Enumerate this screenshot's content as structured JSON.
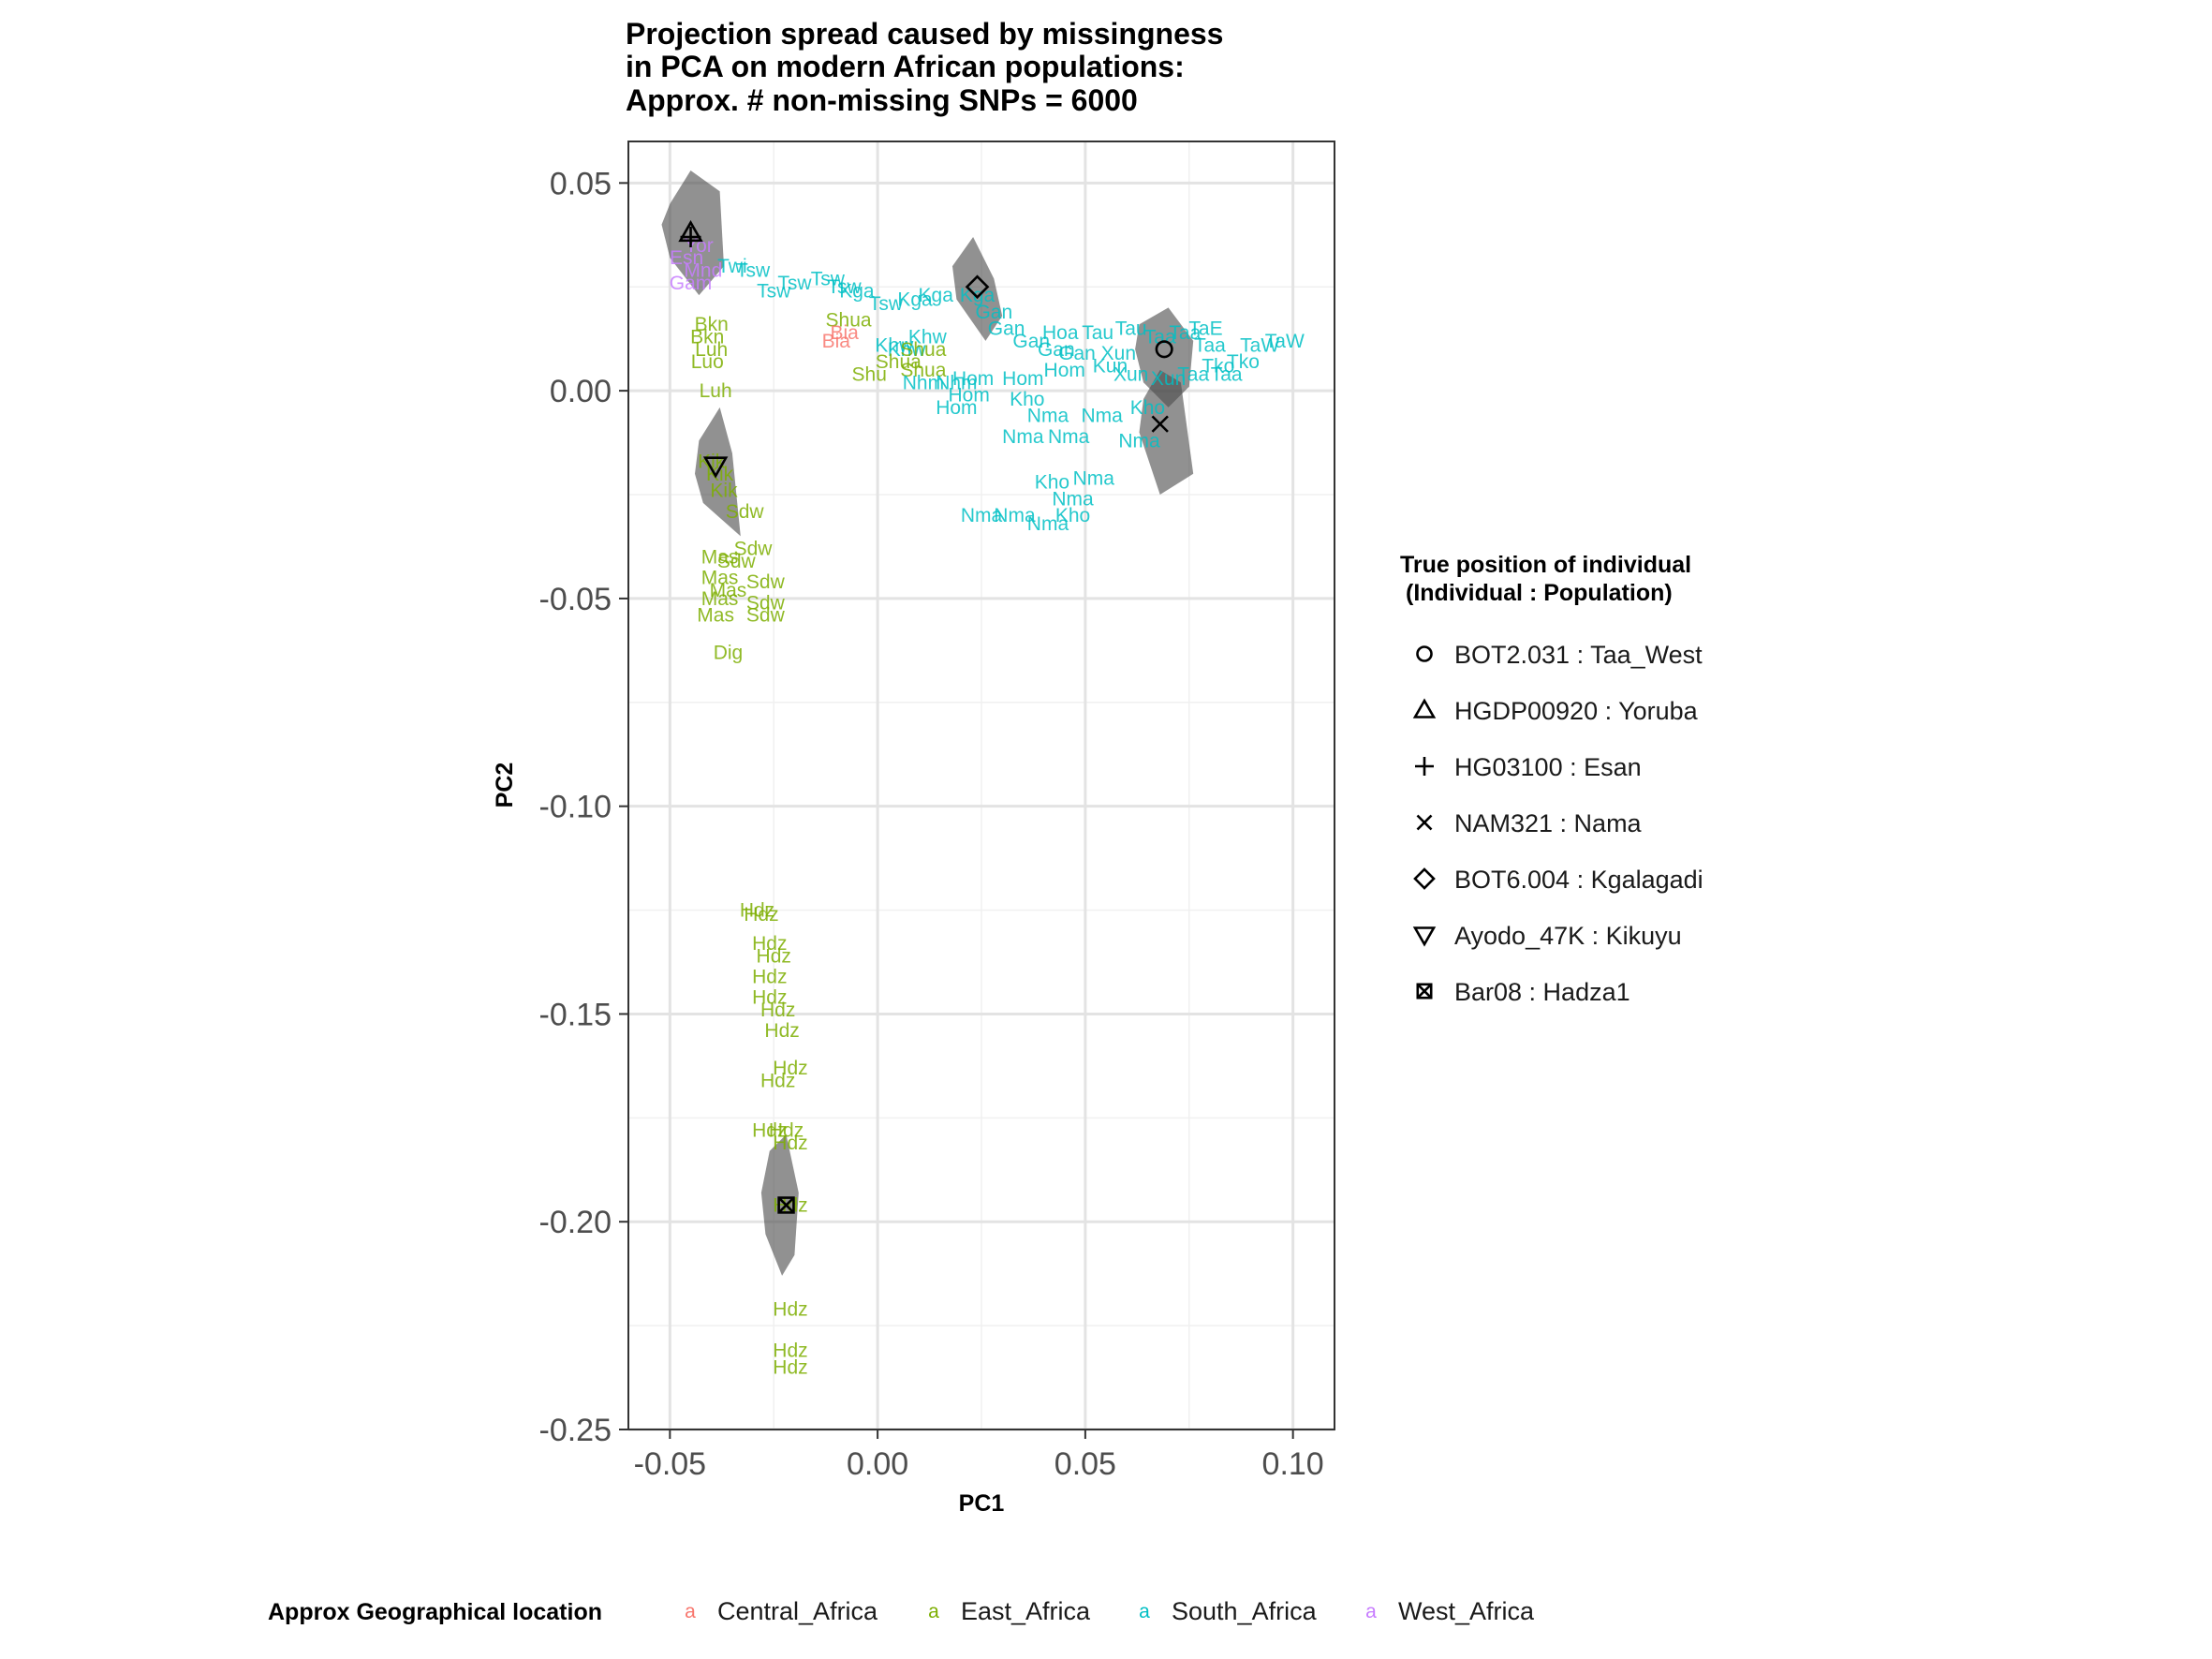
{
  "chart_data": {
    "type": "scatter",
    "title_lines": [
      "Projection spread caused by missingness",
      "in PCA on modern African populations:",
      "Approx. # non-missing SNPs = 6000"
    ],
    "xlabel": "PC1",
    "ylabel": "PC2",
    "xlim": [
      -0.06,
      0.11
    ],
    "ylim": [
      -0.25,
      0.06
    ],
    "x_ticks": [
      -0.05,
      0.0,
      0.05,
      0.1
    ],
    "x_tick_labels": [
      "-0.05",
      "0.00",
      "0.05",
      "0.10"
    ],
    "y_ticks": [
      0.05,
      0.0,
      -0.05,
      -0.1,
      -0.15,
      -0.2,
      -0.25
    ],
    "y_tick_labels": [
      "0.05",
      "0.00",
      "-0.05",
      "-0.10",
      "-0.15",
      "-0.20",
      "-0.25"
    ],
    "grid": true,
    "region_legend": {
      "title": "Approx Geographical location",
      "position": "bottom",
      "entries": [
        {
          "name": "Central_Africa",
          "color": "#F8766D"
        },
        {
          "name": "East_Africa",
          "color": "#7CAE00"
        },
        {
          "name": "South_Africa",
          "color": "#00BFC4"
        },
        {
          "name": "West_Africa",
          "color": "#C77CFF"
        }
      ]
    },
    "true_position_legend": {
      "title_lines": [
        "True position of individual",
        "(Individual : Population)"
      ],
      "position": "right",
      "entries": [
        {
          "shape": "circle",
          "label": "BOT2.031 : Taa_West"
        },
        {
          "shape": "triangle",
          "label": "HGDP00920 : Yoruba"
        },
        {
          "shape": "plus",
          "label": "HG03100 : Esan"
        },
        {
          "shape": "cross",
          "label": "NAM321 : Nama"
        },
        {
          "shape": "diamond",
          "label": "BOT6.004 : Kgalagadi"
        },
        {
          "shape": "triangle-down",
          "label": "Ayodo_47K : Kikuyu"
        },
        {
          "shape": "square-cross",
          "label": "Bar08 : Hadza1"
        }
      ]
    },
    "true_positions": [
      {
        "label": "BOT2.031 : Taa_West",
        "x": 0.069,
        "y": 0.01
      },
      {
        "label": "HGDP00920 : Yoruba",
        "x": -0.045,
        "y": 0.038
      },
      {
        "label": "HG03100 : Esan",
        "x": -0.045,
        "y": 0.037
      },
      {
        "label": "NAM321 : Nama",
        "x": 0.068,
        "y": -0.008
      },
      {
        "label": "BOT6.004 : Kgalagadi",
        "x": 0.024,
        "y": 0.025
      },
      {
        "label": "Ayodo_47K : Kikuyu",
        "x": -0.039,
        "y": -0.018
      },
      {
        "label": "Bar08 : Hadza1",
        "x": -0.022,
        "y": -0.196
      }
    ],
    "spread_hulls": [
      {
        "points": [
          [
            -0.05,
            0.045
          ],
          [
            -0.045,
            0.053
          ],
          [
            -0.038,
            0.048
          ],
          [
            -0.037,
            0.03
          ],
          [
            -0.043,
            0.023
          ],
          [
            -0.05,
            0.032
          ],
          [
            -0.052,
            0.04
          ]
        ]
      },
      {
        "points": [
          [
            0.018,
            0.03
          ],
          [
            0.023,
            0.037
          ],
          [
            0.028,
            0.027
          ],
          [
            0.03,
            0.018
          ],
          [
            0.026,
            0.012
          ],
          [
            0.019,
            0.022
          ]
        ]
      },
      {
        "points": [
          [
            0.063,
            0.016
          ],
          [
            0.07,
            0.02
          ],
          [
            0.076,
            0.012
          ],
          [
            0.075,
            0.001
          ],
          [
            0.07,
            -0.004
          ],
          [
            0.064,
            0.002
          ],
          [
            0.062,
            0.01
          ]
        ]
      },
      {
        "points": [
          [
            0.064,
            -0.002
          ],
          [
            0.068,
            0.005
          ],
          [
            0.073,
            0.002
          ],
          [
            0.076,
            -0.02
          ],
          [
            0.068,
            -0.025
          ],
          [
            0.063,
            -0.01
          ]
        ]
      },
      {
        "points": [
          [
            -0.043,
            -0.012
          ],
          [
            -0.038,
            -0.004
          ],
          [
            -0.035,
            -0.015
          ],
          [
            -0.033,
            -0.035
          ],
          [
            -0.042,
            -0.027
          ],
          [
            -0.044,
            -0.02
          ]
        ]
      },
      {
        "points": [
          [
            -0.026,
            -0.183
          ],
          [
            -0.022,
            -0.179
          ],
          [
            -0.019,
            -0.193
          ],
          [
            -0.02,
            -0.208
          ],
          [
            -0.023,
            -0.213
          ],
          [
            -0.027,
            -0.203
          ],
          [
            -0.028,
            -0.193
          ]
        ]
      }
    ],
    "projected_labels": [
      {
        "text": "Tsw",
        "x": -0.02,
        "y": 0.026,
        "region": "South_Africa"
      },
      {
        "text": "Tsw",
        "x": -0.03,
        "y": 0.029,
        "region": "South_Africa"
      },
      {
        "text": "Tsw",
        "x": -0.012,
        "y": 0.027,
        "region": "South_Africa"
      },
      {
        "text": "Twi",
        "x": -0.035,
        "y": 0.03,
        "region": "South_Africa"
      },
      {
        "text": "Tsw",
        "x": -0.025,
        "y": 0.024,
        "region": "South_Africa"
      },
      {
        "text": "Tsw",
        "x": -0.008,
        "y": 0.025,
        "region": "South_Africa"
      },
      {
        "text": "Kga",
        "x": -0.005,
        "y": 0.024,
        "region": "South_Africa"
      },
      {
        "text": "Tsw",
        "x": 0.002,
        "y": 0.021,
        "region": "South_Africa"
      },
      {
        "text": "Kga",
        "x": 0.009,
        "y": 0.022,
        "region": "South_Africa"
      },
      {
        "text": "Kga",
        "x": 0.014,
        "y": 0.023,
        "region": "South_Africa"
      },
      {
        "text": "Shua",
        "x": -0.007,
        "y": 0.017,
        "region": "East_Africa"
      },
      {
        "text": "Bia",
        "x": -0.008,
        "y": 0.014,
        "region": "Central_Africa"
      },
      {
        "text": "Bia",
        "x": -0.01,
        "y": 0.012,
        "region": "Central_Africa"
      },
      {
        "text": "Kga",
        "x": 0.024,
        "y": 0.023,
        "region": "South_Africa"
      },
      {
        "text": "Gan",
        "x": 0.028,
        "y": 0.019,
        "region": "South_Africa"
      },
      {
        "text": "Gan",
        "x": 0.031,
        "y": 0.015,
        "region": "South_Africa"
      },
      {
        "text": "Gan",
        "x": 0.037,
        "y": 0.012,
        "region": "South_Africa"
      },
      {
        "text": "Hoa",
        "x": 0.044,
        "y": 0.014,
        "region": "South_Africa"
      },
      {
        "text": "Gan",
        "x": 0.043,
        "y": 0.01,
        "region": "South_Africa"
      },
      {
        "text": "Gan",
        "x": 0.048,
        "y": 0.009,
        "region": "South_Africa"
      },
      {
        "text": "Khw",
        "x": 0.012,
        "y": 0.013,
        "region": "South_Africa"
      },
      {
        "text": "Khw",
        "x": 0.004,
        "y": 0.011,
        "region": "South_Africa"
      },
      {
        "text": "Khw",
        "x": 0.007,
        "y": 0.01,
        "region": "South_Africa"
      },
      {
        "text": "Shua",
        "x": 0.011,
        "y": 0.01,
        "region": "East_Africa"
      },
      {
        "text": "Shua",
        "x": 0.005,
        "y": 0.007,
        "region": "East_Africa"
      },
      {
        "text": "Shu",
        "x": -0.002,
        "y": 0.004,
        "region": "East_Africa"
      },
      {
        "text": "Shua",
        "x": 0.011,
        "y": 0.005,
        "region": "East_Africa"
      },
      {
        "text": "Nhm",
        "x": 0.011,
        "y": 0.002,
        "region": "South_Africa"
      },
      {
        "text": "Nhm",
        "x": 0.019,
        "y": 0.002,
        "region": "South_Africa"
      },
      {
        "text": "Hom",
        "x": 0.023,
        "y": 0.003,
        "region": "South_Africa"
      },
      {
        "text": "Hom",
        "x": 0.035,
        "y": 0.003,
        "region": "South_Africa"
      },
      {
        "text": "Hom",
        "x": 0.022,
        "y": -0.001,
        "region": "South_Africa"
      },
      {
        "text": "Hom",
        "x": 0.019,
        "y": -0.004,
        "region": "South_Africa"
      },
      {
        "text": "Hom",
        "x": 0.045,
        "y": 0.005,
        "region": "South_Africa"
      },
      {
        "text": "Kho",
        "x": 0.036,
        "y": -0.002,
        "region": "South_Africa"
      },
      {
        "text": "Nma",
        "x": 0.041,
        "y": -0.006,
        "region": "South_Africa"
      },
      {
        "text": "Nma",
        "x": 0.054,
        "y": -0.006,
        "region": "South_Africa"
      },
      {
        "text": "Nma",
        "x": 0.035,
        "y": -0.011,
        "region": "South_Africa"
      },
      {
        "text": "Nma",
        "x": 0.046,
        "y": -0.011,
        "region": "South_Africa"
      },
      {
        "text": "Kho",
        "x": 0.065,
        "y": -0.004,
        "region": "South_Africa"
      },
      {
        "text": "Nma",
        "x": 0.063,
        "y": -0.012,
        "region": "South_Africa"
      },
      {
        "text": "Kho",
        "x": 0.042,
        "y": -0.022,
        "region": "South_Africa"
      },
      {
        "text": "Nma",
        "x": 0.052,
        "y": -0.021,
        "region": "South_Africa"
      },
      {
        "text": "Nma",
        "x": 0.047,
        "y": -0.026,
        "region": "South_Africa"
      },
      {
        "text": "Nma",
        "x": 0.025,
        "y": -0.03,
        "region": "South_Africa"
      },
      {
        "text": "Nma",
        "x": 0.033,
        "y": -0.03,
        "region": "South_Africa"
      },
      {
        "text": "Kho",
        "x": 0.047,
        "y": -0.03,
        "region": "South_Africa"
      },
      {
        "text": "Nma",
        "x": 0.041,
        "y": -0.032,
        "region": "South_Africa"
      },
      {
        "text": "Tau",
        "x": 0.053,
        "y": 0.014,
        "region": "South_Africa"
      },
      {
        "text": "Tau",
        "x": 0.061,
        "y": 0.015,
        "region": "South_Africa"
      },
      {
        "text": "Taa",
        "x": 0.068,
        "y": 0.013,
        "region": "South_Africa"
      },
      {
        "text": "Taa",
        "x": 0.074,
        "y": 0.014,
        "region": "South_Africa"
      },
      {
        "text": "Xun",
        "x": 0.058,
        "y": 0.009,
        "region": "South_Africa"
      },
      {
        "text": "Kun",
        "x": 0.056,
        "y": 0.006,
        "region": "South_Africa"
      },
      {
        "text": "Xun",
        "x": 0.061,
        "y": 0.004,
        "region": "South_Africa"
      },
      {
        "text": "Xun",
        "x": 0.07,
        "y": 0.003,
        "region": "South_Africa"
      },
      {
        "text": "Taa",
        "x": 0.08,
        "y": 0.011,
        "region": "South_Africa"
      },
      {
        "text": "Tko",
        "x": 0.082,
        "y": 0.006,
        "region": "South_Africa"
      },
      {
        "text": "Tko",
        "x": 0.088,
        "y": 0.007,
        "region": "South_Africa"
      },
      {
        "text": "TaW",
        "x": 0.092,
        "y": 0.011,
        "region": "South_Africa"
      },
      {
        "text": "TaW",
        "x": 0.098,
        "y": 0.012,
        "region": "South_Africa"
      },
      {
        "text": "Taa",
        "x": 0.076,
        "y": 0.004,
        "region": "South_Africa"
      },
      {
        "text": "Taa",
        "x": 0.084,
        "y": 0.004,
        "region": "South_Africa"
      },
      {
        "text": "TaE",
        "x": 0.079,
        "y": 0.015,
        "region": "South_Africa"
      },
      {
        "text": "Yor",
        "x": -0.043,
        "y": 0.035,
        "region": "West_Africa"
      },
      {
        "text": "Esn",
        "x": -0.046,
        "y": 0.032,
        "region": "West_Africa"
      },
      {
        "text": "Gam",
        "x": -0.045,
        "y": 0.026,
        "region": "West_Africa"
      },
      {
        "text": "Mnd",
        "x": -0.042,
        "y": 0.029,
        "region": "West_Africa"
      },
      {
        "text": "Bkn",
        "x": -0.04,
        "y": 0.016,
        "region": "East_Africa"
      },
      {
        "text": "Bkn",
        "x": -0.041,
        "y": 0.013,
        "region": "East_Africa"
      },
      {
        "text": "Luh",
        "x": -0.04,
        "y": 0.01,
        "region": "East_Africa"
      },
      {
        "text": "Luo",
        "x": -0.041,
        "y": 0.007,
        "region": "East_Africa"
      },
      {
        "text": "Luh",
        "x": -0.039,
        "y": 0.0,
        "region": "East_Africa"
      },
      {
        "text": "Kik",
        "x": -0.04,
        "y": -0.017,
        "region": "East_Africa"
      },
      {
        "text": "Kik",
        "x": -0.038,
        "y": -0.02,
        "region": "East_Africa"
      },
      {
        "text": "Kik",
        "x": -0.037,
        "y": -0.024,
        "region": "East_Africa"
      },
      {
        "text": "Sdw",
        "x": -0.032,
        "y": -0.029,
        "region": "East_Africa"
      },
      {
        "text": "Sdw",
        "x": -0.03,
        "y": -0.038,
        "region": "East_Africa"
      },
      {
        "text": "Mas",
        "x": -0.038,
        "y": -0.04,
        "region": "East_Africa"
      },
      {
        "text": "Sdw",
        "x": -0.034,
        "y": -0.041,
        "region": "East_Africa"
      },
      {
        "text": "Mas",
        "x": -0.038,
        "y": -0.045,
        "region": "East_Africa"
      },
      {
        "text": "Mas",
        "x": -0.036,
        "y": -0.048,
        "region": "East_Africa"
      },
      {
        "text": "Sdw",
        "x": -0.027,
        "y": -0.046,
        "region": "East_Africa"
      },
      {
        "text": "Mas",
        "x": -0.038,
        "y": -0.05,
        "region": "East_Africa"
      },
      {
        "text": "Sdw",
        "x": -0.027,
        "y": -0.051,
        "region": "East_Africa"
      },
      {
        "text": "Mas",
        "x": -0.039,
        "y": -0.054,
        "region": "East_Africa"
      },
      {
        "text": "Sdw",
        "x": -0.027,
        "y": -0.054,
        "region": "East_Africa"
      },
      {
        "text": "Dig",
        "x": -0.036,
        "y": -0.063,
        "region": "East_Africa"
      },
      {
        "text": "Hdz",
        "x": -0.029,
        "y": -0.125,
        "region": "East_Africa"
      },
      {
        "text": "Hdz",
        "x": -0.028,
        "y": -0.126,
        "region": "East_Africa"
      },
      {
        "text": "Hdz",
        "x": -0.026,
        "y": -0.133,
        "region": "East_Africa"
      },
      {
        "text": "Hdz",
        "x": -0.025,
        "y": -0.136,
        "region": "East_Africa"
      },
      {
        "text": "Hdz",
        "x": -0.026,
        "y": -0.141,
        "region": "East_Africa"
      },
      {
        "text": "Hdz",
        "x": -0.026,
        "y": -0.146,
        "region": "East_Africa"
      },
      {
        "text": "Hdz",
        "x": -0.024,
        "y": -0.149,
        "region": "East_Africa"
      },
      {
        "text": "Hdz",
        "x": -0.023,
        "y": -0.154,
        "region": "East_Africa"
      },
      {
        "text": "Hdz",
        "x": -0.021,
        "y": -0.163,
        "region": "East_Africa"
      },
      {
        "text": "Hdz",
        "x": -0.024,
        "y": -0.166,
        "region": "East_Africa"
      },
      {
        "text": "Hdz",
        "x": -0.026,
        "y": -0.178,
        "region": "East_Africa"
      },
      {
        "text": "Hdz",
        "x": -0.022,
        "y": -0.178,
        "region": "East_Africa"
      },
      {
        "text": "Hdz",
        "x": -0.021,
        "y": -0.181,
        "region": "East_Africa"
      },
      {
        "text": "Hdz",
        "x": -0.021,
        "y": -0.196,
        "region": "East_Africa"
      },
      {
        "text": "Hdz",
        "x": -0.021,
        "y": -0.221,
        "region": "East_Africa"
      },
      {
        "text": "Hdz",
        "x": -0.021,
        "y": -0.231,
        "region": "East_Africa"
      },
      {
        "text": "Hdz",
        "x": -0.021,
        "y": -0.235,
        "region": "East_Africa"
      }
    ]
  }
}
